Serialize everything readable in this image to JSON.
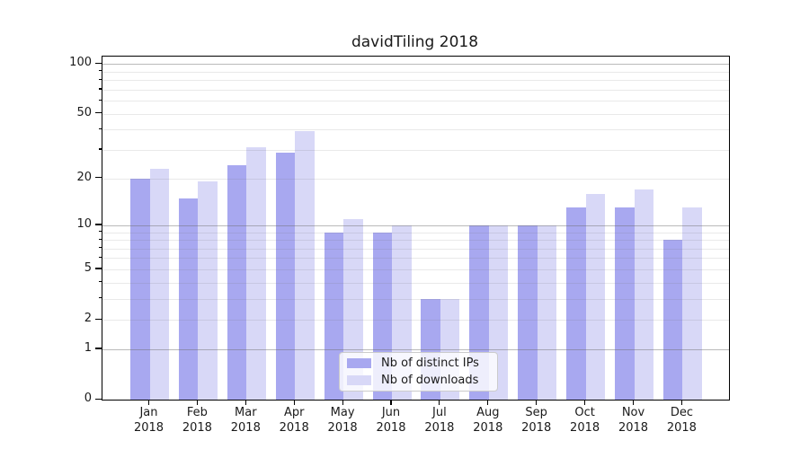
{
  "title": "davidTiling 2018",
  "chart_data": {
    "type": "bar",
    "title": "davidTiling 2018",
    "categories": [
      "Jan",
      "Feb",
      "Mar",
      "Apr",
      "May",
      "Jun",
      "Jul",
      "Aug",
      "Sep",
      "Oct",
      "Nov",
      "Dec"
    ],
    "category_year": "2018",
    "series": [
      {
        "name": "Nb of distinct IPs",
        "color": "#a8a8f0",
        "values": [
          20,
          15,
          24,
          29,
          9,
          9,
          3,
          10,
          10,
          13,
          13,
          8
        ]
      },
      {
        "name": "Nb of downloads",
        "color": "#d8d8f7",
        "values": [
          23,
          19,
          31,
          39,
          11,
          10,
          3,
          10,
          10,
          16,
          17,
          13
        ]
      }
    ],
    "yscale": "log1p",
    "ylim": [
      0,
      111
    ],
    "ytick_values": [
      100,
      50,
      20,
      10,
      5,
      2,
      1,
      0
    ],
    "ytick_labels": [
      "100",
      "50",
      "20",
      "10",
      "5",
      "2",
      "1",
      "0"
    ],
    "yticks_minor_unlabeled": [
      3,
      4,
      6,
      7,
      8,
      9,
      30,
      40,
      60,
      70,
      80,
      90
    ],
    "grid_major_values": [
      1,
      10,
      100
    ],
    "grid_minor_values": [
      2,
      3,
      4,
      5,
      6,
      7,
      8,
      9,
      20,
      30,
      40,
      50,
      60,
      70,
      80,
      90
    ],
    "grid": "on",
    "legend_position": "inside-bottom-center"
  },
  "legend": {
    "items": [
      {
        "label": "Nb of distinct IPs"
      },
      {
        "label": "Nb of downloads"
      }
    ]
  },
  "colors": {
    "bar_distinct_ips": "#a8a8f0",
    "bar_downloads": "#d8d8f7",
    "axis": "#000000",
    "text": "#1a1a1a",
    "grid_major": "rgba(110,110,110,0.48)",
    "grid_minor": "rgba(110,110,110,0.15)",
    "legend_background": "rgba(255,255,255,0.8)",
    "legend_border": "#cccccc"
  }
}
